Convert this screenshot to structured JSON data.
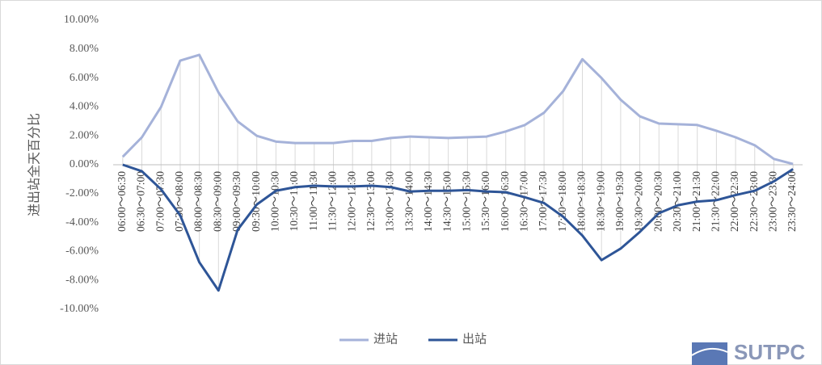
{
  "chart_data": {
    "type": "line",
    "y_axis_label": "进出站全天百分比",
    "categories": [
      "06:00～06:30",
      "06:30～07:00",
      "07:00～07:30",
      "07:30～08:00",
      "08:00～08:30",
      "08:30～09:00",
      "09:00～09:30",
      "09:30～10:00",
      "10:00～10:30",
      "10:30～11:00",
      "11:00～11:30",
      "11:30～12:00",
      "12:00～12:30",
      "12:30～13:00",
      "13:00～13:30",
      "13:30～14:00",
      "14:00～14:30",
      "14:30～15:00",
      "15:00～15:30",
      "15:30～16:00",
      "16:00～16:30",
      "16:30～17:00",
      "17:00～17:30",
      "17:30～18:00",
      "18:00～18:30",
      "18:30～19:00",
      "19:00～19:30",
      "19:30～20:00",
      "20:00～20:30",
      "20:30～21:00",
      "21:00～21:30",
      "21:30～22:00",
      "22:00～22:30",
      "22:30～23:00",
      "23:00～23:30",
      "23:30～24:00"
    ],
    "series": [
      {
        "name": "进站",
        "color": "#a5b2d9",
        "values": [
          0.55,
          1.9,
          4.0,
          7.2,
          7.6,
          5.0,
          3.0,
          2.0,
          1.6,
          1.5,
          1.5,
          1.5,
          1.65,
          1.65,
          1.85,
          1.95,
          1.9,
          1.85,
          1.9,
          1.95,
          2.3,
          2.75,
          3.6,
          5.1,
          7.3,
          6.0,
          4.5,
          3.35,
          2.85,
          2.8,
          2.75,
          2.35,
          1.9,
          1.35,
          0.4,
          0.05
        ]
      },
      {
        "name": "出站",
        "color": "#2e5597",
        "values": [
          0,
          -0.45,
          -1.7,
          -3.5,
          -6.75,
          -8.7,
          -4.5,
          -2.75,
          -1.8,
          -1.55,
          -1.45,
          -1.5,
          -1.5,
          -1.45,
          -1.55,
          -1.85,
          -1.8,
          -1.8,
          -1.75,
          -1.85,
          -1.9,
          -2.25,
          -2.65,
          -3.6,
          -4.9,
          -6.6,
          -5.8,
          -4.65,
          -3.35,
          -2.8,
          -2.55,
          -2.45,
          -2.1,
          -1.8,
          -1.15,
          -0.3
        ]
      }
    ],
    "ylim": [
      -10,
      10
    ],
    "yticks": [
      {
        "value": -10,
        "label": "-10.00%"
      },
      {
        "value": -8,
        "label": "-8.00%"
      },
      {
        "value": -6,
        "label": "-6.00%"
      },
      {
        "value": -4,
        "label": "-4.00%"
      },
      {
        "value": -2,
        "label": "-2.00%"
      },
      {
        "value": 0,
        "label": "0.00%"
      },
      {
        "value": 2,
        "label": "2.00%"
      },
      {
        "value": 4,
        "label": "4.00%"
      },
      {
        "value": 6,
        "label": "6.00%"
      },
      {
        "value": 8,
        "label": "8.00%"
      },
      {
        "value": 10,
        "label": "10.00%"
      }
    ],
    "drop_lines": true,
    "watermark": "SUTPC"
  }
}
